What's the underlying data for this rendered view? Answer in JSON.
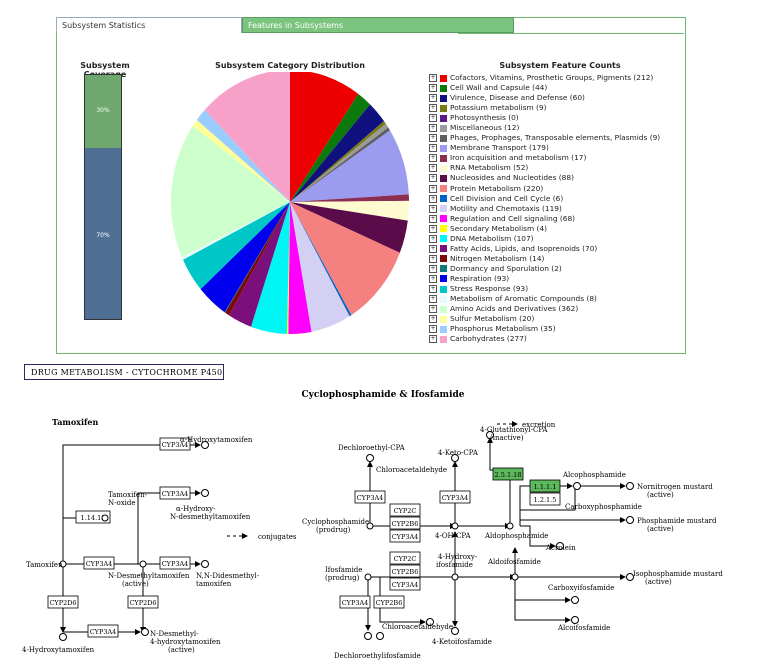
{
  "tabs": {
    "stats": "Subsystem Statistics",
    "features": "Features in Subsystems"
  },
  "coverage": {
    "title": "Subsystem Coverage",
    "in_label": "30%",
    "out_label": "70%",
    "in_fraction": 0.3
  },
  "pie_title": "Subsystem Category Distribution",
  "legend_title": "Subsystem Feature Counts",
  "chart_data": {
    "type": "pie",
    "title": "Subsystem Category Distribution",
    "slices": [
      {
        "label": "Cofactors, Vitamins, Prosthetic Groups, Pigments (212)",
        "value": 212,
        "color": "#ee0000"
      },
      {
        "label": "Cell Wall and Capsule (44)",
        "value": 44,
        "color": "#0b7a0b"
      },
      {
        "label": "Virulence, Disease and Defense (60)",
        "value": 60,
        "color": "#10107f"
      },
      {
        "label": "Potassium metabolism (9)",
        "value": 9,
        "color": "#7a7a12"
      },
      {
        "label": "Photosynthesis (0)",
        "value": 0,
        "color": "#5a1a8a"
      },
      {
        "label": "Miscellaneous (12)",
        "value": 12,
        "color": "#9b9b9b"
      },
      {
        "label": "Phages, Prophages, Transposable elements, Plasmids (9)",
        "value": 9,
        "color": "#5f5f5f"
      },
      {
        "label": "Membrane Transport (179)",
        "value": 179,
        "color": "#9b9bf0"
      },
      {
        "label": "Iron acquisition and metabolism (17)",
        "value": 17,
        "color": "#8b2f52"
      },
      {
        "label": "RNA Metabolism (52)",
        "value": 52,
        "color": "#fffbd0"
      },
      {
        "label": "Nucleosides and Nucleotides (88)",
        "value": 88,
        "color": "#5a0b4a"
      },
      {
        "label": "Protein Metabolism (220)",
        "value": 220,
        "color": "#f58080"
      },
      {
        "label": "Cell Division and Cell Cycle (6)",
        "value": 6,
        "color": "#0063c6"
      },
      {
        "label": "Motility and Chemotaxis (119)",
        "value": 119,
        "color": "#d4d0f4"
      },
      {
        "label": "Regulation and Cell signaling (68)",
        "value": 68,
        "color": "#ff00ff"
      },
      {
        "label": "Secondary Metabolism (4)",
        "value": 4,
        "color": "#ffff00"
      },
      {
        "label": "DNA Metabolism (107)",
        "value": 107,
        "color": "#00f5f5"
      },
      {
        "label": "Fatty Acids, Lipids, and Isoprenoids (70)",
        "value": 70,
        "color": "#7b0f7b"
      },
      {
        "label": "Nitrogen Metabolism (14)",
        "value": 14,
        "color": "#7b0b0b"
      },
      {
        "label": "Dormancy and Sporulation (2)",
        "value": 2,
        "color": "#0f7a7a"
      },
      {
        "label": "Respiration (93)",
        "value": 93,
        "color": "#0000ee"
      },
      {
        "label": "Stress Response (93)",
        "value": 93,
        "color": "#00c7c7"
      },
      {
        "label": "Metabolism of Aromatic Compounds (8)",
        "value": 8,
        "color": "#e8fbfb"
      },
      {
        "label": "Amino Acids and Derivatives (362)",
        "value": 362,
        "color": "#ccffcc"
      },
      {
        "label": "Sulfur Metabolism (20)",
        "value": 20,
        "color": "#ffff99"
      },
      {
        "label": "Phosphorus Metabolism (35)",
        "value": 35,
        "color": "#99ccff"
      },
      {
        "label": "Carbohydrates (277)",
        "value": 277,
        "color": "#f7a0c8"
      }
    ]
  },
  "pathway": {
    "title": "DRUG METABOLISM - CYTOCHROME P450",
    "heading": "Cyclophosphamide & Ifosfamide",
    "tamoxifen": "Tamoxifen",
    "labels": {
      "a_hydroxytamoxifen": "α-Hydroxytamoxifen",
      "tamoxifen_n_oxide_1": "Tamoxifen-",
      "tamoxifen_n_oxide_2": "N-oxide",
      "a_hydroxy_ndm_1": "α-Hydroxy-",
      "a_hydroxy_ndm_2": "N-desmethyltamoxifen",
      "tamoxifen_node": "Tamoxifen",
      "conjugates": "conjugates",
      "ndm_1": "N-Desmethyltamoxifen",
      "ndm_2": "(active)",
      "nndd_1": "N,N-Didesmethyl-",
      "nndd_2": "tamoxifen",
      "hydroxytamoxifen": "4-Hydroxytamoxifen",
      "ndm4h_1": "N-Desmethyl-",
      "ndm4h_2": "4-hydroxytamoxifen",
      "ndm4h_3": "(active)",
      "dechloroethyl_cpa": "Dechloroethyl-CPA",
      "chloroacetaldehyde_1": "Chloroacetaldehyde",
      "keto_cpa": "4-Keto-CPA",
      "glutathionyl_1": "4-Glutathionyl-CPA",
      "glutathionyl_2": "(inactive)",
      "excretion": "excretion",
      "alcophosphamide": "Alcophosphamide",
      "nornitrogen_1": "Nornitrogen mustard",
      "nornitrogen_2": "(active)",
      "carboxyphosphamide": "Carboxyphosphamide",
      "phosphamide_1": "Phosphamide mustard",
      "phosphamide_2": "(active)",
      "cyclophosphamide_1": "Cyclophosphamide",
      "cyclophosphamide_2": "(prodrug)",
      "oh_cpa": "4-OH-CPA",
      "aldophosphamide": "Aldophosphamide",
      "acrolein": "Acrolein",
      "hydroxyifos_1": "4-Hydroxy-",
      "hydroxyifos_2": "ifosfamide",
      "aldoifosfamide": "Aldoifosfamide",
      "isophosphamide_1": "Isophosphamide mustard",
      "isophosphamide_2": "(active)",
      "ifosfamide_1": "Ifosfamide",
      "ifosfamide_2": "(prodrug)",
      "carboxyifosfamide": "Carboxyifosfamide",
      "alcoifosfamide": "Alcoifosfamide",
      "chloroacetaldehyde_2": "Chloroacetaldehyde",
      "dechloroethylifos": "Dechloroethylifosfamide",
      "ketoifos": "4-Ketoifosfamide"
    },
    "enzymes": {
      "cyp3a4": "CYP3A4",
      "cyp2d6": "CYP2D6",
      "ec_1_14_13": "1.14.13",
      "cyp2c": "CYP2C",
      "cyp2b6": "CYP2B6",
      "ec_2_5_1_18": "2.5.1.18",
      "ec_1_1_1_1": "1.1.1.1",
      "ec_1_2_1_5": "1.2.1.5"
    },
    "highlight_color": "#5cb85c"
  }
}
